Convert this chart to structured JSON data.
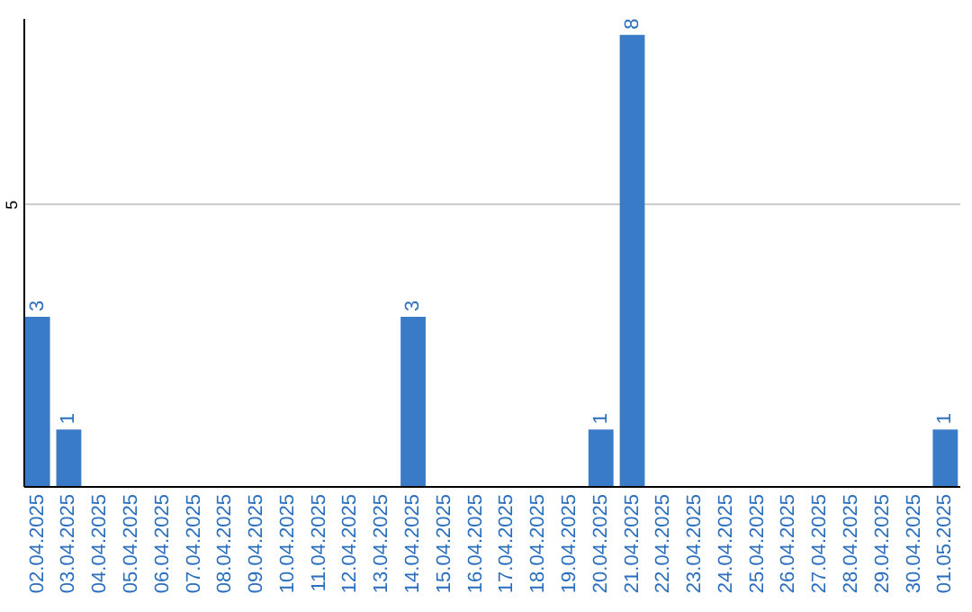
{
  "chart_data": {
    "type": "bar",
    "categories": [
      "02.04.2025",
      "03.04.2025",
      "04.04.2025",
      "05.04.2025",
      "06.04.2025",
      "07.04.2025",
      "08.04.2025",
      "09.04.2025",
      "10.04.2025",
      "11.04.2025",
      "12.04.2025",
      "13.04.2025",
      "14.04.2025",
      "15.04.2025",
      "16.04.2025",
      "17.04.2025",
      "18.04.2025",
      "19.04.2025",
      "20.04.2025",
      "21.04.2025",
      "22.04.2025",
      "23.04.2025",
      "24.04.2025",
      "25.04.2025",
      "26.04.2025",
      "27.04.2025",
      "28.04.2025",
      "29.04.2025",
      "30.04.2025",
      "01.05.2025"
    ],
    "values": [
      3,
      1,
      0,
      0,
      0,
      0,
      0,
      0,
      0,
      0,
      0,
      0,
      3,
      0,
      0,
      0,
      0,
      0,
      1,
      8,
      0,
      0,
      0,
      0,
      0,
      0,
      0,
      0,
      0,
      1
    ],
    "value_labels": [
      "3",
      "1",
      null,
      null,
      null,
      null,
      null,
      null,
      null,
      null,
      null,
      null,
      "3",
      null,
      null,
      null,
      null,
      null,
      "1",
      "8",
      null,
      null,
      null,
      null,
      null,
      null,
      null,
      null,
      null,
      "1"
    ],
    "color": "#3a7bc8",
    "ylim": [
      0,
      8.3
    ],
    "yticks": [
      5
    ],
    "grid": "y"
  }
}
